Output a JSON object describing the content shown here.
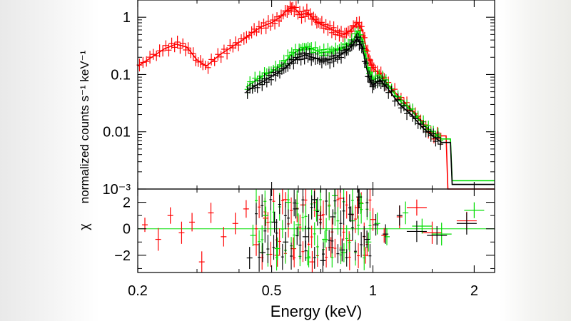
{
  "chart_data": [
    {
      "type": "line",
      "panel": "spectrum",
      "ylabel": "normalized counts s⁻¹ keV⁻¹",
      "yscale": "log",
      "xscale": "log",
      "xlim": [
        0.2,
        2.3
      ],
      "ylim": [
        0.001,
        2
      ],
      "y_ticks": [
        {
          "value": 1,
          "label": "1"
        },
        {
          "value": 0.1,
          "label": "0.1"
        },
        {
          "value": 0.01,
          "label": "0.01"
        },
        {
          "value": 0.001,
          "label": "10⁻³"
        }
      ],
      "series": [
        {
          "color": "#ff0000",
          "x": [
            0.2,
            0.22,
            0.24,
            0.26,
            0.28,
            0.3,
            0.32,
            0.35,
            0.38,
            0.41,
            0.44,
            0.47,
            0.5,
            0.53,
            0.56,
            0.58,
            0.61,
            0.64,
            0.67,
            0.7,
            0.74,
            0.78,
            0.82,
            0.86,
            0.9,
            0.93,
            0.97,
            1.0,
            1.05,
            1.1,
            1.2,
            1.3,
            1.4,
            1.5,
            1.65,
            1.67,
            2.3
          ],
          "y": [
            0.14,
            0.2,
            0.28,
            0.34,
            0.3,
            0.18,
            0.14,
            0.22,
            0.3,
            0.4,
            0.55,
            0.7,
            0.8,
            1.0,
            1.4,
            1.5,
            1.1,
            1.2,
            0.9,
            0.75,
            0.65,
            0.55,
            0.5,
            0.6,
            0.8,
            0.6,
            0.2,
            0.13,
            0.1,
            0.07,
            0.04,
            0.025,
            0.015,
            0.0085,
            0.0085,
            0.001,
            0.001
          ]
        },
        {
          "color": "#00dd00",
          "x": [
            0.42,
            0.45,
            0.48,
            0.51,
            0.54,
            0.57,
            0.6,
            0.63,
            0.66,
            0.7,
            0.74,
            0.78,
            0.82,
            0.86,
            0.9,
            0.93,
            0.97,
            1.0,
            1.05,
            1.1,
            1.2,
            1.3,
            1.4,
            1.5,
            1.6,
            1.7,
            1.72,
            2.3
          ],
          "y": [
            0.06,
            0.08,
            0.1,
            0.12,
            0.15,
            0.22,
            0.26,
            0.3,
            0.28,
            0.24,
            0.25,
            0.26,
            0.3,
            0.34,
            0.55,
            0.4,
            0.12,
            0.08,
            0.09,
            0.07,
            0.035,
            0.024,
            0.014,
            0.01,
            0.0075,
            0.0075,
            0.0014,
            0.0014
          ]
        },
        {
          "color": "#000000",
          "x": [
            0.42,
            0.45,
            0.48,
            0.51,
            0.54,
            0.57,
            0.6,
            0.63,
            0.66,
            0.7,
            0.74,
            0.78,
            0.82,
            0.86,
            0.9,
            0.93,
            0.97,
            1.0,
            1.05,
            1.1,
            1.2,
            1.3,
            1.4,
            1.5,
            1.6,
            1.7,
            1.72,
            2.3
          ],
          "y": [
            0.05,
            0.065,
            0.08,
            0.1,
            0.12,
            0.16,
            0.2,
            0.22,
            0.2,
            0.18,
            0.18,
            0.2,
            0.24,
            0.3,
            0.42,
            0.3,
            0.09,
            0.065,
            0.08,
            0.06,
            0.03,
            0.02,
            0.012,
            0.0085,
            0.0065,
            0.0065,
            0.0012,
            0.0012
          ]
        }
      ]
    },
    {
      "type": "scatter",
      "panel": "residuals",
      "ylabel": "χ",
      "xlabel": "Energy (keV)",
      "xscale": "log",
      "xlim": [
        0.2,
        2.3
      ],
      "ylim": [
        -3.3,
        3.0
      ],
      "y_ticks": [
        {
          "value": 2,
          "label": "2"
        },
        {
          "value": 0,
          "label": "0"
        },
        {
          "value": -2,
          "label": "−2"
        }
      ],
      "x_ticks": [
        {
          "value": 0.2,
          "label": "0.2"
        },
        {
          "value": 0.5,
          "label": "0.5"
        },
        {
          "value": 1,
          "label": "1"
        },
        {
          "value": 2,
          "label": "2"
        }
      ],
      "series": [
        {
          "color": "#ff0000",
          "x": [
            0.21,
            0.23,
            0.25,
            0.27,
            0.29,
            0.31,
            0.33,
            0.36,
            0.39,
            0.42,
            0.45,
            0.48,
            0.52,
            0.55,
            0.58,
            0.62,
            0.66,
            0.7,
            0.75,
            0.8,
            0.85,
            0.9,
            0.95,
            1.0,
            1.08,
            1.2,
            1.35,
            1.5,
            1.9
          ],
          "y": [
            0.3,
            -0.8,
            1.0,
            -0.3,
            0.5,
            -2.5,
            1.2,
            -0.6,
            0.4,
            1.5,
            -1.2,
            0.8,
            -2.0,
            2.2,
            -1.5,
            1.8,
            -2.5,
            1.0,
            -1.4,
            2.3,
            -0.9,
            1.6,
            -2.0,
            0.7,
            -0.5,
            0.9,
            1.6,
            -0.3,
            0.6
          ]
        },
        {
          "color": "#00dd00",
          "x": [
            0.44,
            0.48,
            0.52,
            0.56,
            0.6,
            0.64,
            0.68,
            0.72,
            0.77,
            0.82,
            0.87,
            0.92,
            0.97,
            1.03,
            1.1,
            1.25,
            1.4,
            1.6,
            2.0
          ],
          "y": [
            -0.5,
            1.0,
            -1.5,
            2.0,
            0.3,
            -2.2,
            1.4,
            -0.8,
            2.5,
            -1.8,
            0.6,
            1.9,
            -1.0,
            0.4,
            -0.6,
            1.2,
            0.2,
            -0.4,
            1.4
          ]
        },
        {
          "color": "#000000",
          "x": [
            0.43,
            0.47,
            0.51,
            0.55,
            0.59,
            0.63,
            0.67,
            0.71,
            0.76,
            0.81,
            0.86,
            0.91,
            0.96,
            1.02,
            1.09,
            1.2,
            1.35,
            1.55,
            1.9
          ],
          "y": [
            -2.2,
            -1.8,
            0.5,
            -1.0,
            1.5,
            -0.6,
            2.2,
            -2.4,
            0.9,
            -1.6,
            1.1,
            2.4,
            -0.8,
            0.3,
            -0.4,
            1.0,
            -0.2,
            -0.5,
            0.4
          ]
        }
      ]
    }
  ]
}
